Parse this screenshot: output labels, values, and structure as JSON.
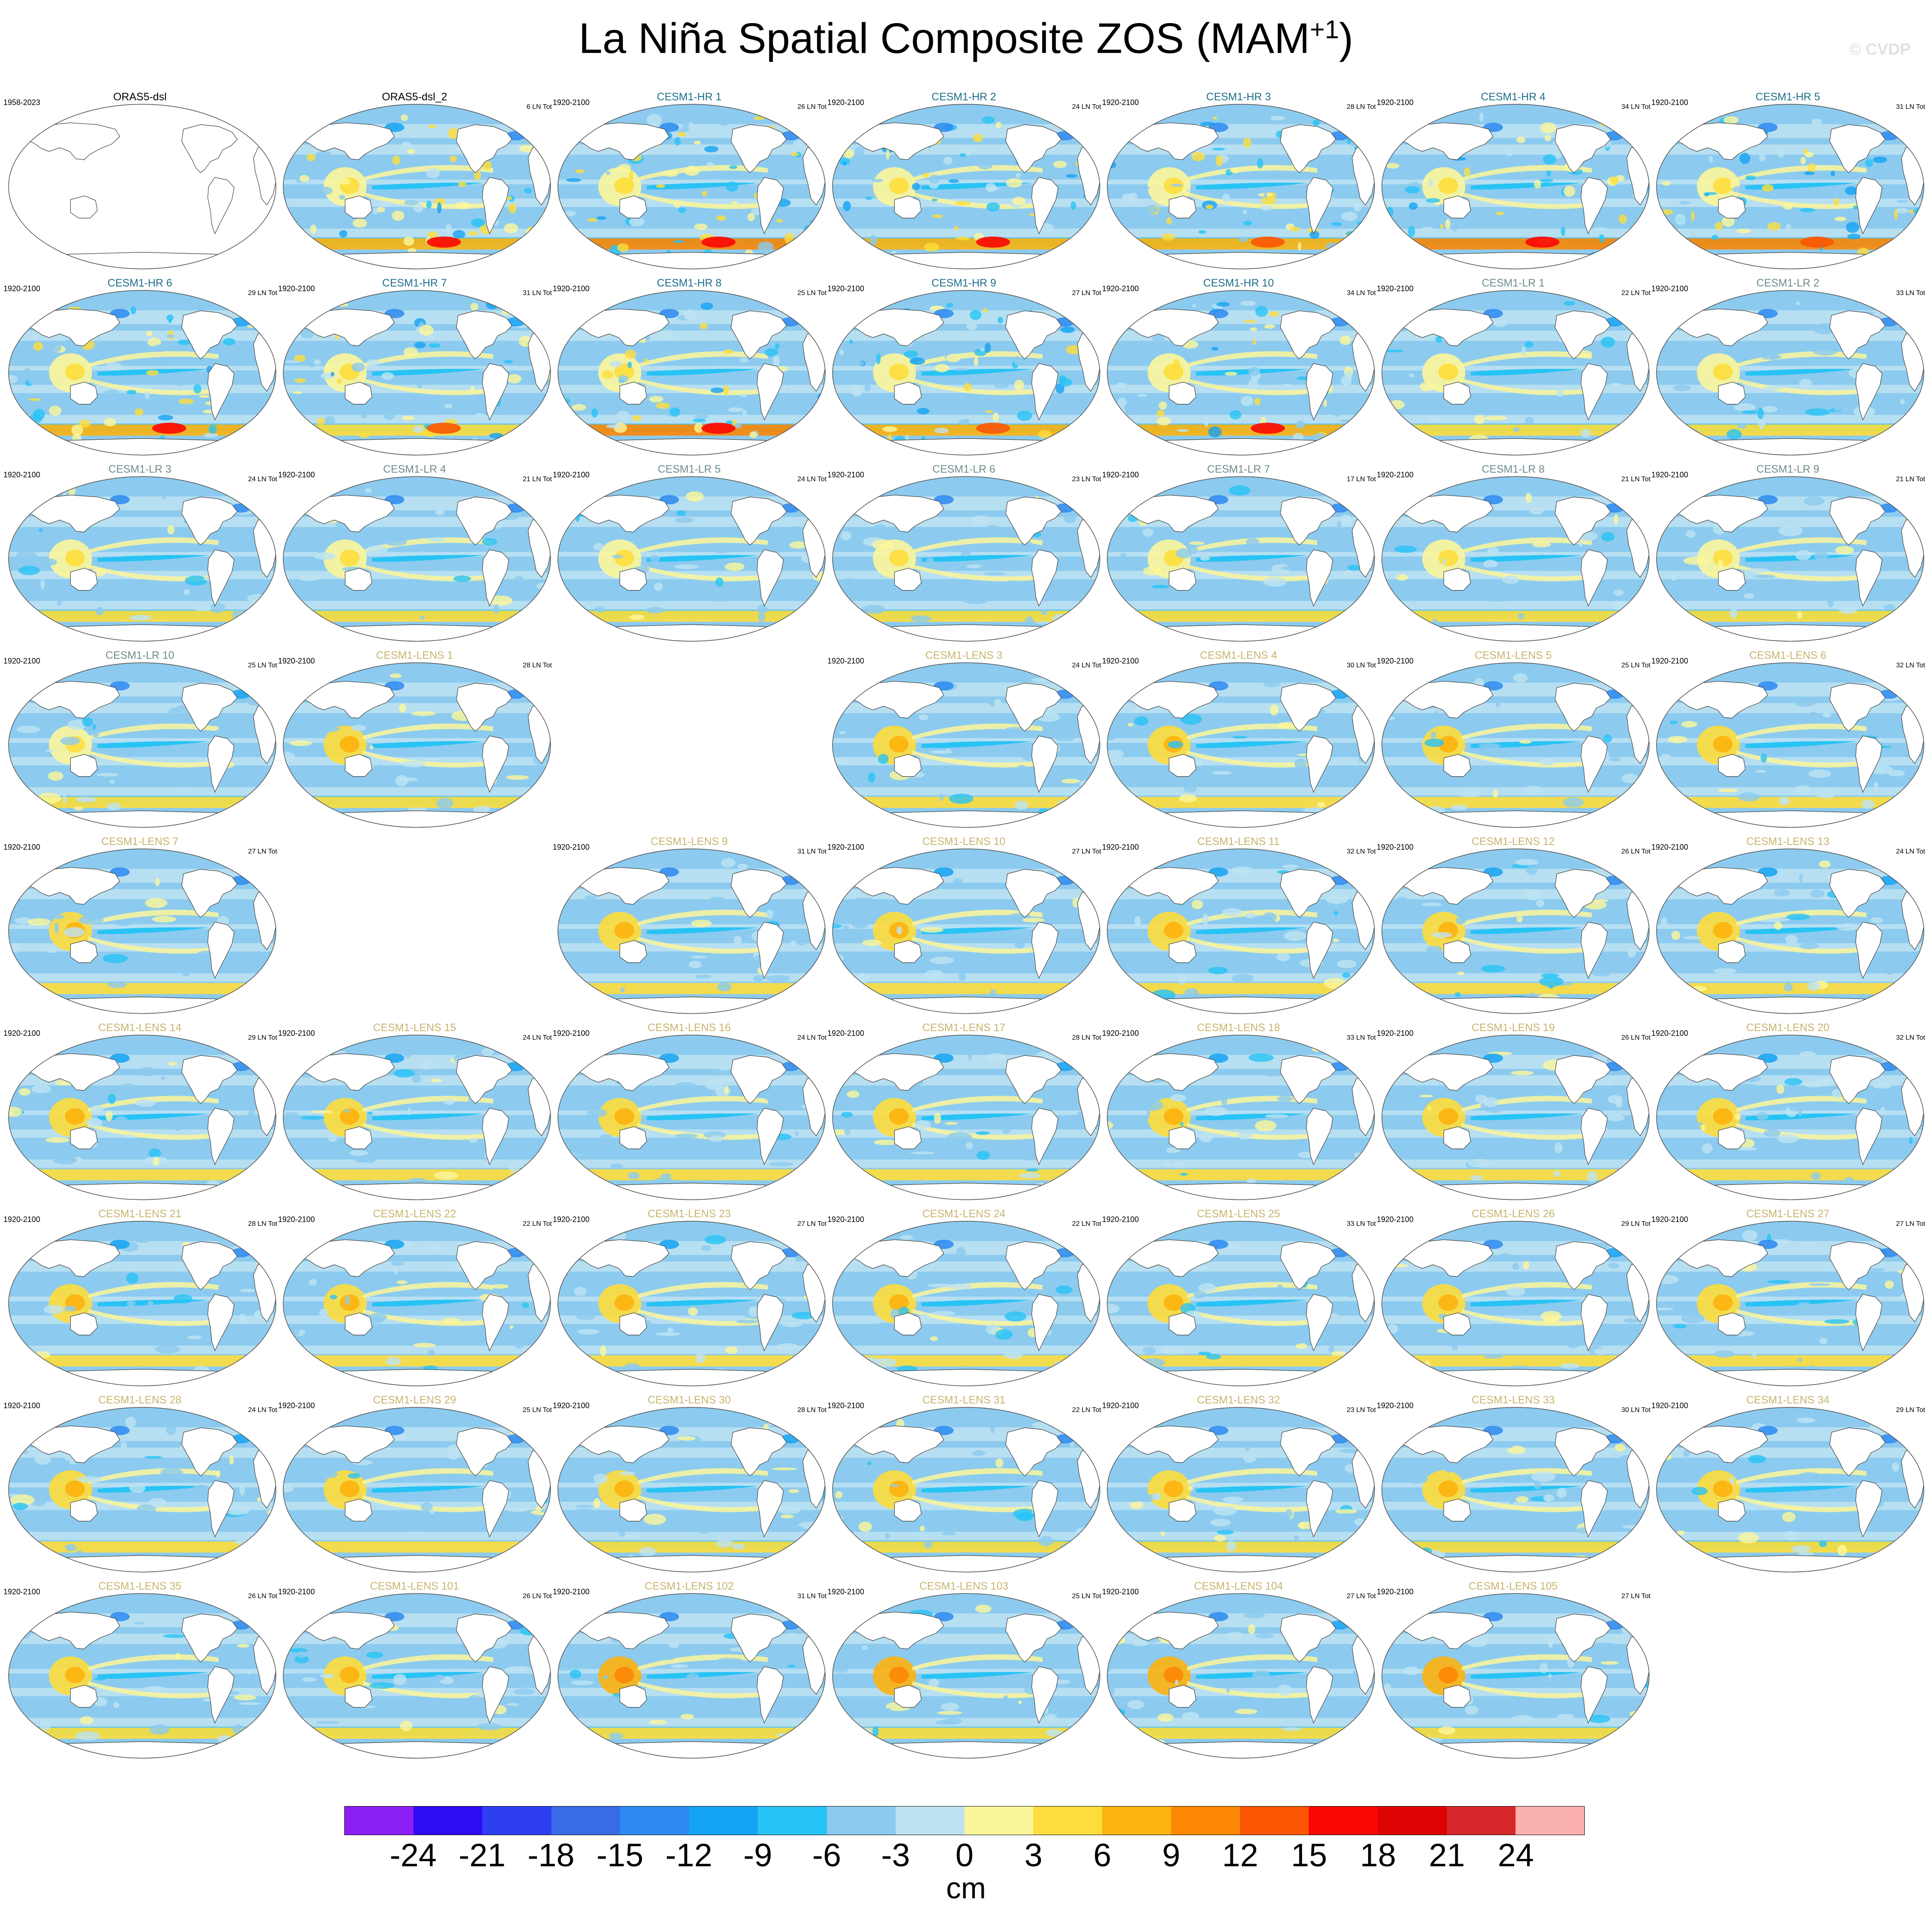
{
  "title": "La Niña Spatial Composite ZOS (MAM",
  "title_superscript": "+1",
  "title_close": ")",
  "watermark": "© CVDP",
  "colors": {
    "title_black": "#000000",
    "hr_title": "#1d6e8c",
    "lr_title": "#6e8c8c",
    "lens_title": "#c8b46e",
    "land": "#ffffff",
    "coast": "#444444"
  },
  "chart_data": {
    "type": "heatmap",
    "units": "cm",
    "colorbar": {
      "ticks": [
        "-24",
        "-21",
        "-18",
        "-15",
        "-12",
        "-9",
        "-6",
        "-3",
        "0",
        "3",
        "6",
        "9",
        "12",
        "15",
        "18",
        "21",
        "24"
      ],
      "colors": [
        "#8b1ef2",
        "#2f0cf6",
        "#2e3ff0",
        "#3a6be6",
        "#2c89f0",
        "#15a3f3",
        "#28c3f5",
        "#8ccbef",
        "#bee3f2",
        "#fcf69a",
        "#fedd3c",
        "#fdb310",
        "#fd8705",
        "#fb5604",
        "#fb0703",
        "#dd0303",
        "#d6272a",
        "#fbb1b0"
      ]
    },
    "panels": [
      {
        "title": "ORAS5-dsl",
        "years": "1958-2023",
        "count": "",
        "group": "obs",
        "empty": true
      },
      {
        "title": "ORAS5-dsl_2",
        "years": "",
        "count": "6 LN Tot",
        "group": "obs",
        "empty": false
      },
      {
        "title": "CESM1-HR 1",
        "years": "1920-2100",
        "count": "26 LN Tot",
        "group": "hr",
        "empty": false
      },
      {
        "title": "CESM1-HR 2",
        "years": "1920-2100",
        "count": "24 LN Tot",
        "group": "hr",
        "empty": false
      },
      {
        "title": "CESM1-HR 3",
        "years": "1920-2100",
        "count": "28 LN Tot",
        "group": "hr",
        "empty": false
      },
      {
        "title": "CESM1-HR 4",
        "years": "1920-2100",
        "count": "34 LN Tot",
        "group": "hr",
        "empty": false
      },
      {
        "title": "CESM1-HR 5",
        "years": "1920-2100",
        "count": "31 LN Tot",
        "group": "hr",
        "empty": false
      },
      {
        "title": "CESM1-HR 6",
        "years": "1920-2100",
        "count": "29 LN Tot",
        "group": "hr",
        "empty": false
      },
      {
        "title": "CESM1-HR 7",
        "years": "1920-2100",
        "count": "31 LN Tot",
        "group": "hr",
        "empty": false
      },
      {
        "title": "CESM1-HR 8",
        "years": "1920-2100",
        "count": "25 LN Tot",
        "group": "hr",
        "empty": false
      },
      {
        "title": "CESM1-HR 9",
        "years": "1920-2100",
        "count": "27 LN Tot",
        "group": "hr",
        "empty": false
      },
      {
        "title": "CESM1-HR 10",
        "years": "1920-2100",
        "count": "34 LN Tot",
        "group": "hr",
        "empty": false
      },
      {
        "title": "CESM1-LR 1",
        "years": "1920-2100",
        "count": "22 LN Tot",
        "group": "lr",
        "empty": false
      },
      {
        "title": "CESM1-LR 2",
        "years": "1920-2100",
        "count": "33 LN Tot",
        "group": "lr",
        "empty": false
      },
      {
        "title": "CESM1-LR 3",
        "years": "1920-2100",
        "count": "24 LN Tot",
        "group": "lr",
        "empty": false
      },
      {
        "title": "CESM1-LR 4",
        "years": "1920-2100",
        "count": "21 LN Tot",
        "group": "lr",
        "empty": false
      },
      {
        "title": "CESM1-LR 5",
        "years": "1920-2100",
        "count": "24 LN Tot",
        "group": "lr",
        "empty": false
      },
      {
        "title": "CESM1-LR 6",
        "years": "1920-2100",
        "count": "23 LN Tot",
        "group": "lr",
        "empty": false
      },
      {
        "title": "CESM1-LR 7",
        "years": "1920-2100",
        "count": "17 LN Tot",
        "group": "lr",
        "empty": false
      },
      {
        "title": "CESM1-LR 8",
        "years": "1920-2100",
        "count": "21 LN Tot",
        "group": "lr",
        "empty": false
      },
      {
        "title": "CESM1-LR 9",
        "years": "1920-2100",
        "count": "21 LN Tot",
        "group": "lr",
        "empty": false
      },
      {
        "title": "CESM1-LR 10",
        "years": "1920-2100",
        "count": "25 LN Tot",
        "group": "lr",
        "empty": false
      },
      {
        "title": "CESM1-LENS 1",
        "years": "1920-2100",
        "count": "28 LN Tot",
        "group": "lens",
        "empty": false
      },
      null,
      {
        "title": "CESM1-LENS 3",
        "years": "1920-2100",
        "count": "24 LN Tot",
        "group": "lens",
        "empty": false
      },
      {
        "title": "CESM1-LENS 4",
        "years": "1920-2100",
        "count": "30 LN Tot",
        "group": "lens",
        "empty": false
      },
      {
        "title": "CESM1-LENS 5",
        "years": "1920-2100",
        "count": "25 LN Tot",
        "group": "lens",
        "empty": false
      },
      {
        "title": "CESM1-LENS 6",
        "years": "1920-2100",
        "count": "32 LN Tot",
        "group": "lens",
        "empty": false
      },
      {
        "title": "CESM1-LENS 7",
        "years": "1920-2100",
        "count": "27 LN Tot",
        "group": "lens",
        "empty": false
      },
      null,
      {
        "title": "CESM1-LENS 9",
        "years": "1920-2100",
        "count": "31 LN Tot",
        "group": "lens",
        "empty": false
      },
      {
        "title": "CESM1-LENS 10",
        "years": "1920-2100",
        "count": "27 LN Tot",
        "group": "lens",
        "empty": false
      },
      {
        "title": "CESM1-LENS 11",
        "years": "1920-2100",
        "count": "32 LN Tot",
        "group": "lens",
        "empty": false
      },
      {
        "title": "CESM1-LENS 12",
        "years": "1920-2100",
        "count": "26 LN Tot",
        "group": "lens",
        "empty": false
      },
      {
        "title": "CESM1-LENS 13",
        "years": "1920-2100",
        "count": "24 LN Tot",
        "group": "lens",
        "empty": false
      },
      {
        "title": "CESM1-LENS 14",
        "years": "1920-2100",
        "count": "29 LN Tot",
        "group": "lens",
        "empty": false
      },
      {
        "title": "CESM1-LENS 15",
        "years": "1920-2100",
        "count": "24 LN Tot",
        "group": "lens",
        "empty": false
      },
      {
        "title": "CESM1-LENS 16",
        "years": "1920-2100",
        "count": "24 LN Tot",
        "group": "lens",
        "empty": false
      },
      {
        "title": "CESM1-LENS 17",
        "years": "1920-2100",
        "count": "28 LN Tot",
        "group": "lens",
        "empty": false
      },
      {
        "title": "CESM1-LENS 18",
        "years": "1920-2100",
        "count": "33 LN Tot",
        "group": "lens",
        "empty": false
      },
      {
        "title": "CESM1-LENS 19",
        "years": "1920-2100",
        "count": "26 LN Tot",
        "group": "lens",
        "empty": false
      },
      {
        "title": "CESM1-LENS 20",
        "years": "1920-2100",
        "count": "32 LN Tot",
        "group": "lens",
        "empty": false
      },
      {
        "title": "CESM1-LENS 21",
        "years": "1920-2100",
        "count": "28 LN Tot",
        "group": "lens",
        "empty": false
      },
      {
        "title": "CESM1-LENS 22",
        "years": "1920-2100",
        "count": "22 LN Tot",
        "group": "lens",
        "empty": false
      },
      {
        "title": "CESM1-LENS 23",
        "years": "1920-2100",
        "count": "27 LN Tot",
        "group": "lens",
        "empty": false
      },
      {
        "title": "CESM1-LENS 24",
        "years": "1920-2100",
        "count": "22 LN Tot",
        "group": "lens",
        "empty": false
      },
      {
        "title": "CESM1-LENS 25",
        "years": "1920-2100",
        "count": "33 LN Tot",
        "group": "lens",
        "empty": false
      },
      {
        "title": "CESM1-LENS 26",
        "years": "1920-2100",
        "count": "29 LN Tot",
        "group": "lens",
        "empty": false
      },
      {
        "title": "CESM1-LENS 27",
        "years": "1920-2100",
        "count": "27 LN Tot",
        "group": "lens",
        "empty": false
      },
      {
        "title": "CESM1-LENS 28",
        "years": "1920-2100",
        "count": "24 LN Tot",
        "group": "lens",
        "empty": false
      },
      {
        "title": "CESM1-LENS 29",
        "years": "1920-2100",
        "count": "25 LN Tot",
        "group": "lens",
        "empty": false
      },
      {
        "title": "CESM1-LENS 30",
        "years": "1920-2100",
        "count": "28 LN Tot",
        "group": "lens",
        "empty": false
      },
      {
        "title": "CESM1-LENS 31",
        "years": "1920-2100",
        "count": "22 LN Tot",
        "group": "lens",
        "empty": false
      },
      {
        "title": "CESM1-LENS 32",
        "years": "1920-2100",
        "count": "23 LN Tot",
        "group": "lens",
        "empty": false
      },
      {
        "title": "CESM1-LENS 33",
        "years": "1920-2100",
        "count": "30 LN Tot",
        "group": "lens",
        "empty": false
      },
      {
        "title": "CESM1-LENS 34",
        "years": "1920-2100",
        "count": "29 LN Tot",
        "group": "lens",
        "empty": false
      },
      {
        "title": "CESM1-LENS 35",
        "years": "1920-2100",
        "count": "26 LN Tot",
        "group": "lens",
        "empty": false
      },
      {
        "title": "CESM1-LENS 101",
        "years": "1920-2100",
        "count": "26 LN Tot",
        "group": "lens",
        "empty": false
      },
      {
        "title": "CESM1-LENS 102",
        "years": "1920-2100",
        "count": "31 LN Tot",
        "group": "lens",
        "empty": false
      },
      {
        "title": "CESM1-LENS 103",
        "years": "1920-2100",
        "count": "25 LN Tot",
        "group": "lens",
        "empty": false
      },
      {
        "title": "CESM1-LENS 104",
        "years": "1920-2100",
        "count": "27 LN Tot",
        "group": "lens",
        "empty": false
      },
      {
        "title": "CESM1-LENS 105",
        "years": "1920-2100",
        "count": "27 LN Tot",
        "group": "lens",
        "empty": false
      }
    ]
  }
}
